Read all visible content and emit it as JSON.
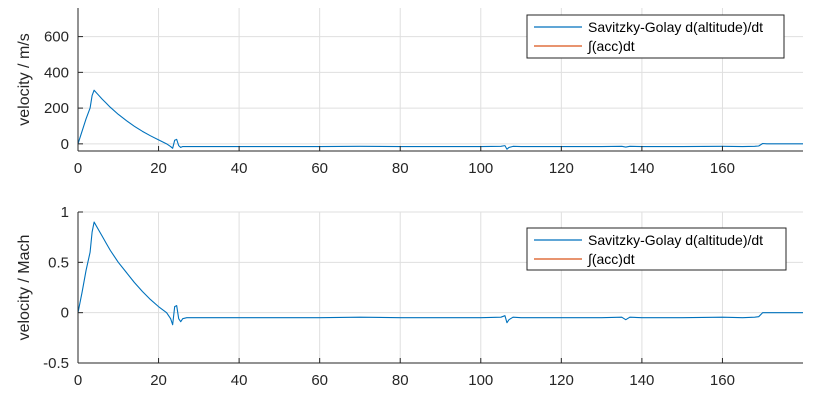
{
  "chart_data": [
    {
      "type": "line",
      "ylabel": "velocity / m/s",
      "xlim": [
        0,
        180
      ],
      "ylim": [
        -40,
        760
      ],
      "xticks": [
        0,
        20,
        40,
        60,
        80,
        100,
        120,
        140,
        160
      ],
      "yticks": [
        0,
        200,
        400,
        600
      ],
      "grid": true,
      "legend_position": "top-right",
      "series": [
        {
          "name": "Savitzky-Golay d(altitude)/dt",
          "color": "#0072BD",
          "x": [
            0,
            1,
            2,
            3,
            3.5,
            4,
            5,
            6,
            7,
            8,
            10,
            12,
            14,
            16,
            18,
            20,
            22,
            23,
            23.5,
            24,
            24.5,
            25,
            25.5,
            26,
            27,
            30,
            40,
            50,
            60,
            70,
            80,
            90,
            100,
            105,
            106,
            106.5,
            107,
            108,
            110,
            120,
            130,
            135,
            136,
            137,
            140,
            150,
            160,
            165,
            168,
            169,
            170,
            171,
            175,
            180
          ],
          "y": [
            0,
            70,
            140,
            200,
            270,
            300,
            275,
            250,
            228,
            205,
            165,
            130,
            98,
            70,
            45,
            22,
            0,
            -15,
            -25,
            20,
            25,
            -10,
            -20,
            -15,
            -15,
            -15,
            -15,
            -15,
            -15,
            -14,
            -15,
            -15,
            -15,
            -14,
            -10,
            -30,
            -20,
            -14,
            -15,
            -15,
            -15,
            -14,
            -18,
            -14,
            -15,
            -15,
            -14,
            -15,
            -14,
            -12,
            2,
            0,
            0,
            0
          ]
        },
        {
          "name": "∫(acc)dt",
          "color": "#D95319",
          "x": [],
          "y": []
        }
      ]
    },
    {
      "type": "line",
      "ylabel": "velocity / Mach",
      "xlim": [
        0,
        180
      ],
      "ylim": [
        -0.5,
        1
      ],
      "xticks": [
        0,
        20,
        40,
        60,
        80,
        100,
        120,
        140,
        160
      ],
      "yticks": [
        -0.5,
        0,
        0.5,
        1
      ],
      "ytick_labels": [
        "-0.5",
        "0",
        "0.5",
        "1"
      ],
      "grid": true,
      "legend_position": "top-right",
      "series": [
        {
          "name": "Savitzky-Golay d(altitude)/dt",
          "color": "#0072BD",
          "x": [
            0,
            1,
            2,
            3,
            3.5,
            4,
            5,
            6,
            7,
            8,
            10,
            12,
            14,
            16,
            18,
            20,
            22,
            23,
            23.5,
            24,
            24.5,
            25,
            25.5,
            26,
            27,
            30,
            40,
            50,
            60,
            70,
            80,
            90,
            100,
            105,
            106,
            106.5,
            107,
            108,
            110,
            120,
            130,
            135,
            136,
            137,
            140,
            150,
            160,
            165,
            168,
            169,
            170,
            171,
            175,
            180
          ],
          "y": [
            0,
            0.2,
            0.42,
            0.6,
            0.8,
            0.9,
            0.83,
            0.76,
            0.69,
            0.62,
            0.5,
            0.4,
            0.3,
            0.21,
            0.13,
            0.06,
            0,
            -0.06,
            -0.12,
            0.06,
            0.07,
            -0.06,
            -0.09,
            -0.06,
            -0.05,
            -0.05,
            -0.05,
            -0.05,
            -0.05,
            -0.045,
            -0.05,
            -0.05,
            -0.05,
            -0.045,
            -0.03,
            -0.1,
            -0.07,
            -0.045,
            -0.05,
            -0.05,
            -0.05,
            -0.045,
            -0.07,
            -0.045,
            -0.05,
            -0.05,
            -0.045,
            -0.05,
            -0.045,
            -0.04,
            0,
            0,
            0,
            0
          ]
        },
        {
          "name": "∫(acc)dt",
          "color": "#D95319",
          "x": [],
          "y": []
        }
      ]
    }
  ]
}
